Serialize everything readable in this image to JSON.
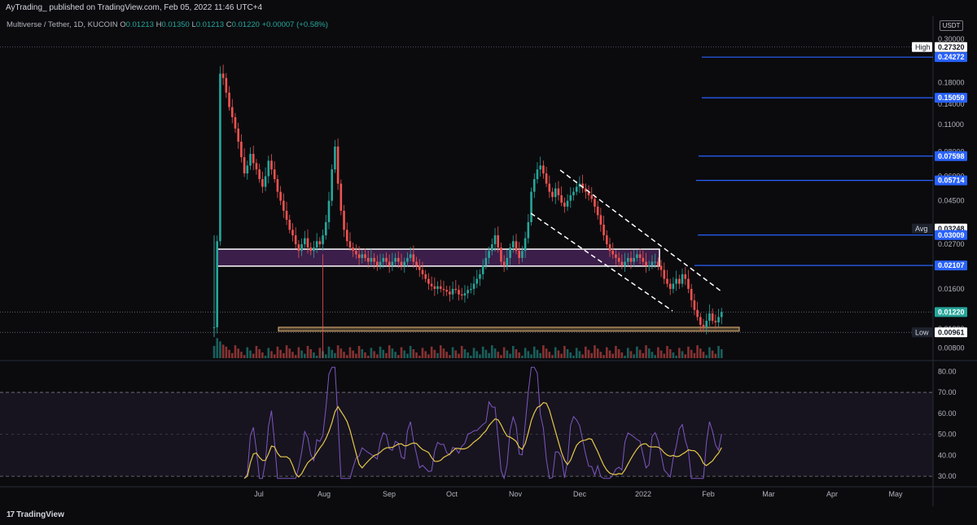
{
  "header": {
    "publisher": "AyTrading_ published on TradingView.com, Feb 05, 2022 11:46 UTC+4"
  },
  "legend": {
    "symbol": "Multiverse / Tether, 1D, KUCOIN",
    "o_key": "O",
    "o_val": "0.01213",
    "h_key": "H",
    "h_val": "0.01350",
    "l_key": "L",
    "l_val": "0.01213",
    "c_key": "C",
    "c_val": "0.01220",
    "change": "+0.00007 (+0.58%)"
  },
  "currency_button": "USDT",
  "footer": {
    "brand": "TradingView",
    "logo_mark": "17"
  },
  "colors": {
    "up": "#26a69a",
    "down": "#ef5350",
    "level_line": "#2962ff",
    "rsi_line": "#7e57c2",
    "rsi_ma": "#e6c84b",
    "zone_fill": "#3b1e4a",
    "support_fill": "#c9a06a"
  },
  "chart_data": {
    "type": "candlestick",
    "x_axis_ticks": [
      "Jul",
      "Aug",
      "Sep",
      "Oct",
      "Nov",
      "Dec",
      "2022",
      "Feb",
      "Mar",
      "Apr",
      "May"
    ],
    "price_axis": {
      "scale": "log",
      "range": [
        0.0071,
        0.33
      ],
      "ticks": [
        "0.30000",
        "0.18000",
        "0.14000",
        "0.11000",
        "0.08000",
        "0.06000",
        "0.04500",
        "0.02700",
        "0.01600",
        "0.01000",
        "0.00800"
      ]
    },
    "price_labels": [
      {
        "label": "High",
        "value": "0.27320",
        "style": "white"
      },
      {
        "label": "",
        "value": "0.24272",
        "style": "blue"
      },
      {
        "label": "",
        "value": "0.15059",
        "style": "blue"
      },
      {
        "label": "",
        "value": "0.07598",
        "style": "blue"
      },
      {
        "label": "",
        "value": "0.05714",
        "style": "blue"
      },
      {
        "label": "Avg",
        "value": "0.03248",
        "style": "dark"
      },
      {
        "label": "",
        "value": "0.03009",
        "style": "blue"
      },
      {
        "label": "",
        "value": "0.02107",
        "style": "blue"
      },
      {
        "label": "",
        "value": "0.01220",
        "style": "green"
      },
      {
        "label": "Low",
        "value": "0.00961",
        "style": "dark"
      }
    ],
    "high": 0.2732,
    "low": 0.00961,
    "last_close": 0.0122,
    "levels": [
      0.24272,
      0.15059,
      0.07598,
      0.05714,
      0.03009,
      0.02107
    ],
    "zones": [
      {
        "name": "range",
        "top": 0.0255,
        "bottom": 0.0209
      },
      {
        "name": "support",
        "top": 0.0102,
        "bottom": 0.00975
      }
    ],
    "closes": [
      0.0102,
      0.028,
      0.2,
      0.19,
      0.16,
      0.135,
      0.12,
      0.105,
      0.09,
      0.075,
      0.062,
      0.068,
      0.078,
      0.07,
      0.065,
      0.058,
      0.053,
      0.06,
      0.072,
      0.065,
      0.058,
      0.05,
      0.045,
      0.04,
      0.036,
      0.032,
      0.03,
      0.027,
      0.025,
      0.027,
      0.029,
      0.026,
      0.025,
      0.026,
      0.028,
      0.027,
      0.03,
      0.035,
      0.045,
      0.065,
      0.085,
      0.055,
      0.04,
      0.032,
      0.028,
      0.026,
      0.025,
      0.024,
      0.023,
      0.024,
      0.023,
      0.022,
      0.023,
      0.022,
      0.021,
      0.022,
      0.023,
      0.022,
      0.021,
      0.022,
      0.023,
      0.022,
      0.021,
      0.022,
      0.023,
      0.024,
      0.022,
      0.021,
      0.02,
      0.019,
      0.018,
      0.017,
      0.0165,
      0.016,
      0.0165,
      0.016,
      0.0158,
      0.0155,
      0.015,
      0.016,
      0.0158,
      0.015,
      0.0148,
      0.0152,
      0.0158,
      0.016,
      0.017,
      0.018,
      0.019,
      0.021,
      0.023,
      0.025,
      0.027,
      0.03,
      0.026,
      0.022,
      0.021,
      0.023,
      0.026,
      0.028,
      0.025,
      0.023,
      0.025,
      0.029,
      0.035,
      0.05,
      0.058,
      0.065,
      0.068,
      0.062,
      0.055,
      0.05,
      0.047,
      0.052,
      0.048,
      0.044,
      0.042,
      0.045,
      0.048,
      0.05,
      0.053,
      0.055,
      0.052,
      0.05,
      0.048,
      0.046,
      0.042,
      0.038,
      0.034,
      0.03,
      0.027,
      0.025,
      0.024,
      0.023,
      0.022,
      0.021,
      0.022,
      0.023,
      0.022,
      0.023,
      0.024,
      0.023,
      0.022,
      0.021,
      0.021,
      0.022,
      0.022,
      0.021,
      0.02,
      0.018,
      0.017,
      0.016,
      0.017,
      0.018,
      0.017,
      0.019,
      0.018,
      0.016,
      0.014,
      0.0125,
      0.0115,
      0.0105,
      0.0102,
      0.011,
      0.012,
      0.011,
      0.0108,
      0.0115,
      0.0122
    ],
    "rsi": {
      "ticks": [
        "80.00",
        "70.00",
        "60.00",
        "50.00",
        "40.00",
        "30.00"
      ],
      "bands": [
        70,
        30
      ],
      "range": [
        25,
        84
      ]
    }
  }
}
